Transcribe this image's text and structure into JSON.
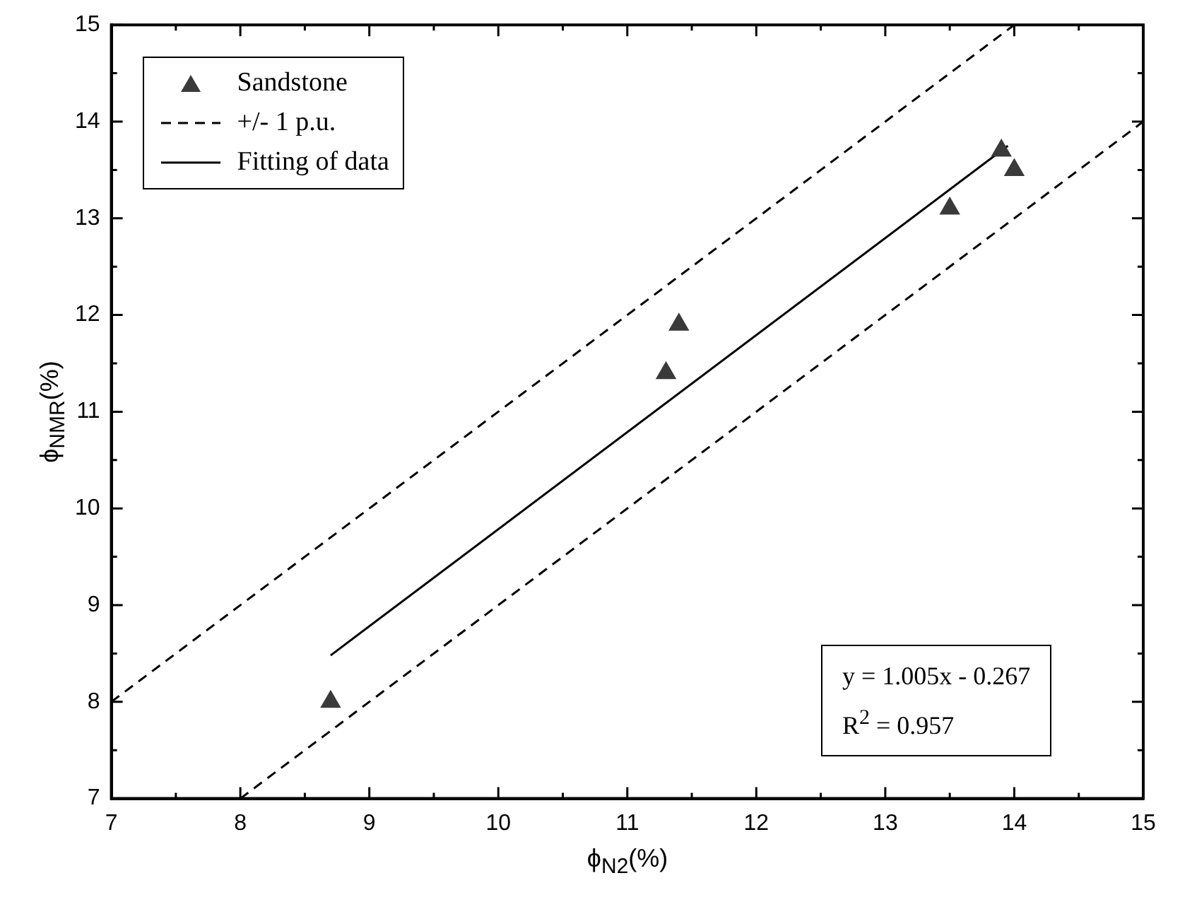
{
  "chart_data": {
    "type": "scatter",
    "xlabel": "ϕ$_{N2}$(%)",
    "ylabel": "ϕ$_{NMR}$(%)",
    "xlim": [
      7,
      15
    ],
    "ylim": [
      7,
      15
    ],
    "xticks": [
      7,
      {
        "value": 7.5,
        "label": null
      },
      8,
      {
        "value": 8.5,
        "label": null
      },
      9,
      {
        "value": 9.5,
        "label": null
      },
      10,
      {
        "value": 10.5,
        "label": null
      },
      11,
      {
        "value": 11.5,
        "label": null
      },
      12,
      {
        "value": 12.5,
        "label": null
      },
      13,
      {
        "value": 13.5,
        "label": null
      },
      14,
      {
        "value": 14.5,
        "label": null
      },
      15
    ],
    "yticks": [
      7,
      {
        "value": 7.5,
        "label": null
      },
      8,
      {
        "value": 8.5,
        "label": null
      },
      9,
      {
        "value": 9.5,
        "label": null
      },
      10,
      {
        "value": 10.5,
        "label": null
      },
      11,
      {
        "value": 11.5,
        "label": null
      },
      12,
      {
        "value": 12.5,
        "label": null
      },
      13,
      {
        "value": 13.5,
        "label": null
      },
      14,
      {
        "value": 14.5,
        "label": null
      },
      15
    ],
    "legend": "top left",
    "series": [
      {
        "name": "Sandstone",
        "marker": "triangle",
        "color": "#3a3a3a",
        "x": [
          8.7,
          11.3,
          11.4,
          13.5,
          13.9,
          14.0
        ],
        "values": [
          8.0,
          11.4,
          11.9,
          13.1,
          13.7,
          13.5
        ]
      },
      {
        "name": "+/- 1 p.u.",
        "type": "line",
        "line_style": "dashed",
        "color": "#000000",
        "x": [
          7,
          14
        ],
        "values": [
          8,
          15
        ]
      },
      {
        "type": "line",
        "line_style": "dashed",
        "color": "#000000",
        "x": [
          8,
          15
        ],
        "values": [
          7,
          14
        ]
      },
      {
        "name": "Fitting of data",
        "type": "line",
        "line_style": "solid",
        "color": "#000000",
        "x": [
          8.7,
          13.95
        ],
        "values": [
          8.48,
          13.75
        ]
      }
    ],
    "annotations": [
      "y = 1.005x - 0.267",
      "R$^{2}$ = 0.957"
    ]
  }
}
